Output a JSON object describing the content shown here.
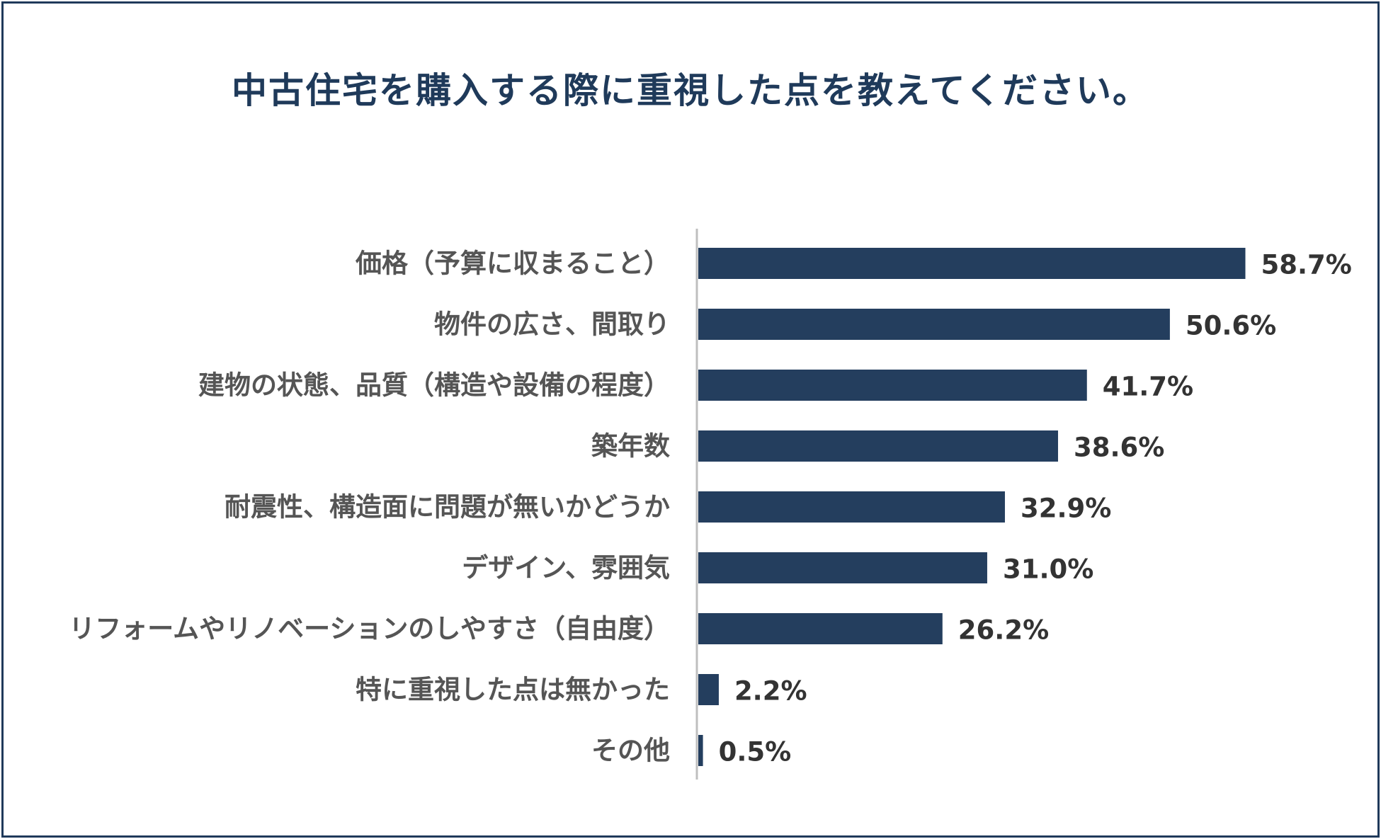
{
  "chart_data": {
    "type": "bar",
    "orientation": "horizontal",
    "title": "中古住宅を購入する際に重視した点を教えてください。",
    "categories": [
      "価格（予算に収まること）",
      "物件の広さ、間取り",
      "建物の状態、品質（構造や設備の程度）",
      "築年数",
      "耐震性、構造面に問題が無いかどうか",
      "デザイン、雰囲気",
      "リフォームやリノベーションのしやすさ（自由度）",
      "特に重視した点は無かった",
      "その他"
    ],
    "values": [
      58.7,
      50.6,
      41.7,
      38.6,
      32.9,
      31.0,
      26.2,
      2.2,
      0.5
    ],
    "value_labels": [
      "58.7%",
      "50.6%",
      "41.7%",
      "38.6%",
      "32.9%",
      "31.0%",
      "26.2%",
      "2.2%",
      "0.5%"
    ],
    "xlim": [
      0,
      100
    ],
    "xlabel": "",
    "ylabel": "",
    "grid": false,
    "legend": "none",
    "bar_color": "#243e5e",
    "title_color": "#1f3a5a",
    "axis_color": "#bfbfbf"
  }
}
